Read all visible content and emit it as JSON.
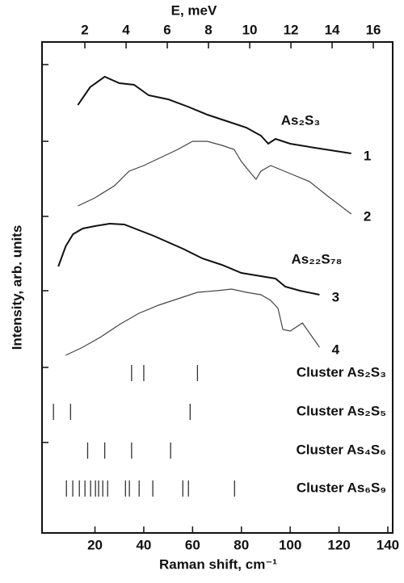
{
  "chart_data": {
    "type": "line",
    "x_label": "Raman shift, cm⁻¹",
    "x2_label": "E, meV",
    "y_label": "Intensity, arb. units",
    "xlim": [
      -1.7,
      142
    ],
    "xticks": [
      20,
      40,
      60,
      80,
      100,
      120,
      140
    ],
    "x2lim": [
      -0.08,
      16.94
    ],
    "x2ticks": [
      2,
      4,
      6,
      8,
      10,
      12,
      14,
      16
    ],
    "ylim": [
      0,
      60.8
    ],
    "series": [
      {
        "name": "1",
        "color": "#111",
        "x": [
          13,
          18,
          24,
          30,
          36,
          42,
          50,
          58,
          66,
          74,
          82,
          88,
          91,
          94,
          100,
          110,
          125
        ],
        "values": [
          53,
          55.2,
          56.5,
          55.7,
          55.5,
          54.2,
          53.7,
          52.8,
          51.8,
          51,
          50.2,
          49.2,
          48.2,
          48.8,
          48.2,
          47.7,
          47
        ]
      },
      {
        "name": "2",
        "color": "#444",
        "x": [
          13,
          20,
          28,
          34,
          40,
          47,
          54,
          60,
          66,
          72,
          77,
          80,
          84,
          86,
          88,
          92,
          100,
          108,
          115,
          125
        ],
        "values": [
          40.5,
          41.5,
          43,
          44.8,
          45.5,
          46.5,
          47.5,
          48.5,
          48.5,
          48,
          47.5,
          46,
          44.5,
          43.8,
          44.8,
          45.5,
          44.5,
          43.5,
          41.8,
          39.5
        ]
      },
      {
        "name": "3",
        "color": "#111",
        "x": [
          5,
          8,
          11,
          15,
          20,
          26,
          32,
          38,
          44,
          50,
          56,
          64,
          72,
          80,
          88,
          94,
          98,
          104,
          112
        ],
        "values": [
          33,
          35.5,
          37,
          37.7,
          38,
          38.3,
          38.2,
          37.5,
          36.8,
          36,
          35.2,
          34,
          33.2,
          32.2,
          31.8,
          31.5,
          30.5,
          30,
          29.5
        ]
      },
      {
        "name": "4",
        "color": "#444",
        "x": [
          8,
          15,
          22,
          30,
          38,
          46,
          54,
          62,
          70,
          76,
          82,
          88,
          92,
          95,
          97,
          100,
          105,
          112
        ],
        "values": [
          22,
          23,
          24.2,
          25.8,
          27.2,
          28.2,
          29,
          29.8,
          30,
          30.2,
          29.8,
          29.5,
          28.8,
          27.8,
          25.2,
          25,
          26,
          23
        ]
      }
    ],
    "annotations": [
      "As₂S₃",
      "As₂₂S₇₈"
    ],
    "clusters": [
      {
        "name": "Cluster As₂S₃",
        "positions": [
          35,
          40,
          62
        ]
      },
      {
        "name": "Cluster As₂S₅",
        "positions": [
          3,
          10,
          59
        ]
      },
      {
        "name": "Cluster As₄S₆",
        "positions": [
          17,
          24,
          35,
          51
        ]
      },
      {
        "name": "Cluster As₆S₉",
        "positions": [
          8.3,
          10.9,
          13.6,
          15.9,
          18.2,
          20.2,
          21.5,
          23.2,
          25.2,
          32.5,
          34.1,
          38.1,
          43.7,
          56,
          58.3,
          77.2
        ]
      }
    ]
  }
}
